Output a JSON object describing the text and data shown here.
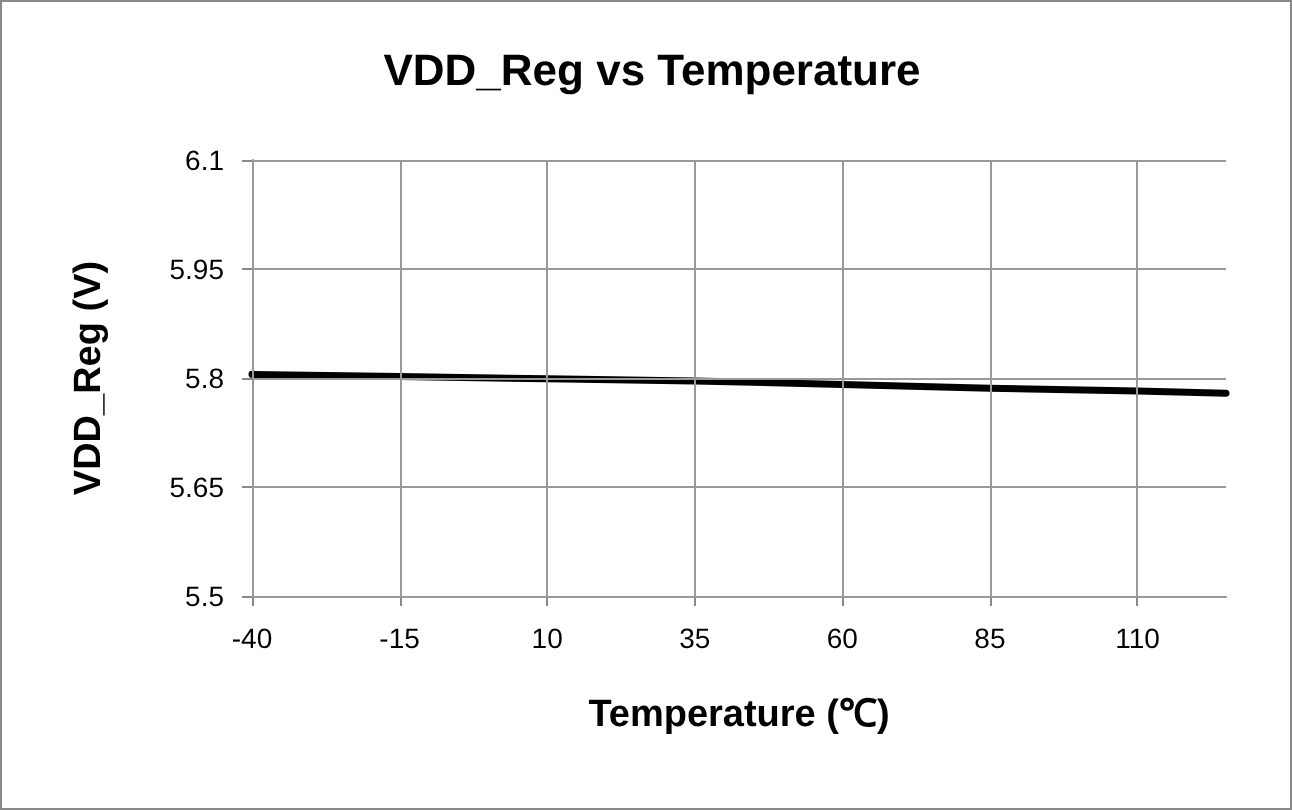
{
  "chart_data": {
    "type": "line",
    "title": "VDD_Reg vs Temperature",
    "xlabel": "Temperature (℃)",
    "ylabel": "VDD_Reg (V)",
    "x": [
      -40,
      -15,
      10,
      35,
      60,
      85,
      110,
      125
    ],
    "series": [
      {
        "color": "#000000",
        "values": [
          5.805,
          5.802,
          5.799,
          5.796,
          5.791,
          5.786,
          5.782,
          5.779
        ]
      }
    ],
    "xlim": [
      -40,
      125
    ],
    "xticks": [
      -40,
      -15,
      10,
      35,
      60,
      85,
      110
    ],
    "ylim": [
      5.5,
      6.1
    ],
    "yticks": [
      5.5,
      5.65,
      5.8,
      5.95,
      6.1
    ],
    "grid": true,
    "marker": "none",
    "line_style": "solid"
  }
}
